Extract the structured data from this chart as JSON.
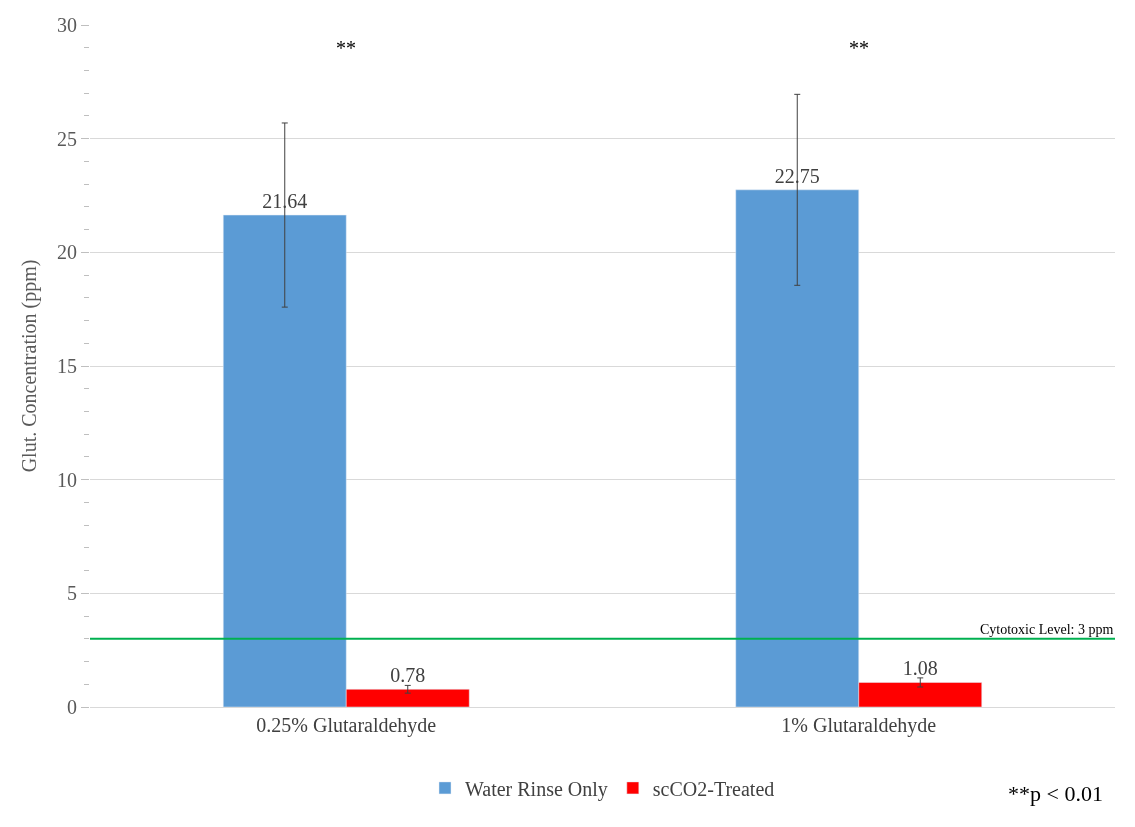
{
  "chart_data": {
    "type": "bar",
    "ylabel": "Glut. Concentration (ppm)",
    "categories": [
      "0.25% Glutaraldehyde",
      "1% Glutaraldehyde"
    ],
    "series": [
      {
        "name": "Water Rinse Only",
        "color": "#5b9bd5",
        "values": [
          21.64,
          22.75
        ],
        "errors": [
          4.05,
          4.2
        ]
      },
      {
        "name": "scCO2-Treated",
        "color": "#ff0000",
        "values": [
          0.78,
          1.08
        ],
        "errors": [
          0.17,
          0.2
        ]
      }
    ],
    "data_labels": true,
    "ylim": [
      0,
      30
    ],
    "yticks": [
      0,
      5,
      10,
      15,
      20,
      25,
      30
    ],
    "grid": "y",
    "legend": "bottom",
    "ref_lines": [
      {
        "axis": "y",
        "value": 3,
        "label": "Cytotoxic Level: 3 ppm",
        "color": "#00b050"
      }
    ],
    "annotations": [
      "**",
      "**",
      "**p < 0.01"
    ]
  }
}
